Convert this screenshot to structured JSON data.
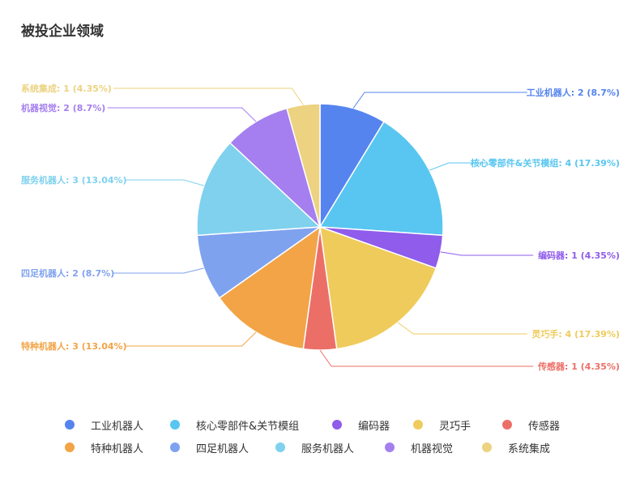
{
  "chart_data": {
    "type": "pie",
    "title": "被投企业领域",
    "slices": [
      {
        "name": "工业机器人",
        "value": 2,
        "percent": "8.7%",
        "color": "#5584ef",
        "label": "工业机器人: 2 (8.7%)"
      },
      {
        "name": "核心零部件&关节模组",
        "value": 4,
        "percent": "17.39%",
        "color": "#58c6f1",
        "label": "核心零部件&关节模组: 4 (17.39%)"
      },
      {
        "name": "编码器",
        "value": 1,
        "percent": "4.35%",
        "color": "#8f5ceb",
        "label": "编码器: 1 (4.35%)"
      },
      {
        "name": "灵巧手",
        "value": 4,
        "percent": "17.39%",
        "color": "#efcb5c",
        "label": "灵巧手: 4 (17.39%)"
      },
      {
        "name": "传感器",
        "value": 1,
        "percent": "4.35%",
        "color": "#ec6f67",
        "label": "传感器: 1 (4.35%)"
      },
      {
        "name": "特种机器人",
        "value": 3,
        "percent": "13.04%",
        "color": "#f2a446",
        "label": "特种机器人: 3 (13.04%)"
      },
      {
        "name": "四足机器人",
        "value": 2,
        "percent": "8.7%",
        "color": "#7fa2ef",
        "label": "四足机器人: 2 (8.7%)"
      },
      {
        "name": "服务机器人",
        "value": 3,
        "percent": "13.04%",
        "color": "#7fd1ee",
        "label": "服务机器人: 3 (13.04%)"
      },
      {
        "name": "机器视觉",
        "value": 2,
        "percent": "8.7%",
        "color": "#a57fef",
        "label": "机器视觉: 2 (8.7%)"
      },
      {
        "name": "系统集成",
        "value": 1,
        "percent": "4.35%",
        "color": "#ecd281",
        "label": "系统集成: 1 (4.35%)"
      }
    ],
    "legend_placement": "bottom",
    "legend_rows": [
      [
        "工业机器人",
        "核心零部件&关节模组",
        "编码器",
        "灵巧手",
        "传感器"
      ],
      [
        "特种机器人",
        "四足机器人",
        "服务机器人",
        "机器视觉",
        "系统集成"
      ]
    ]
  }
}
